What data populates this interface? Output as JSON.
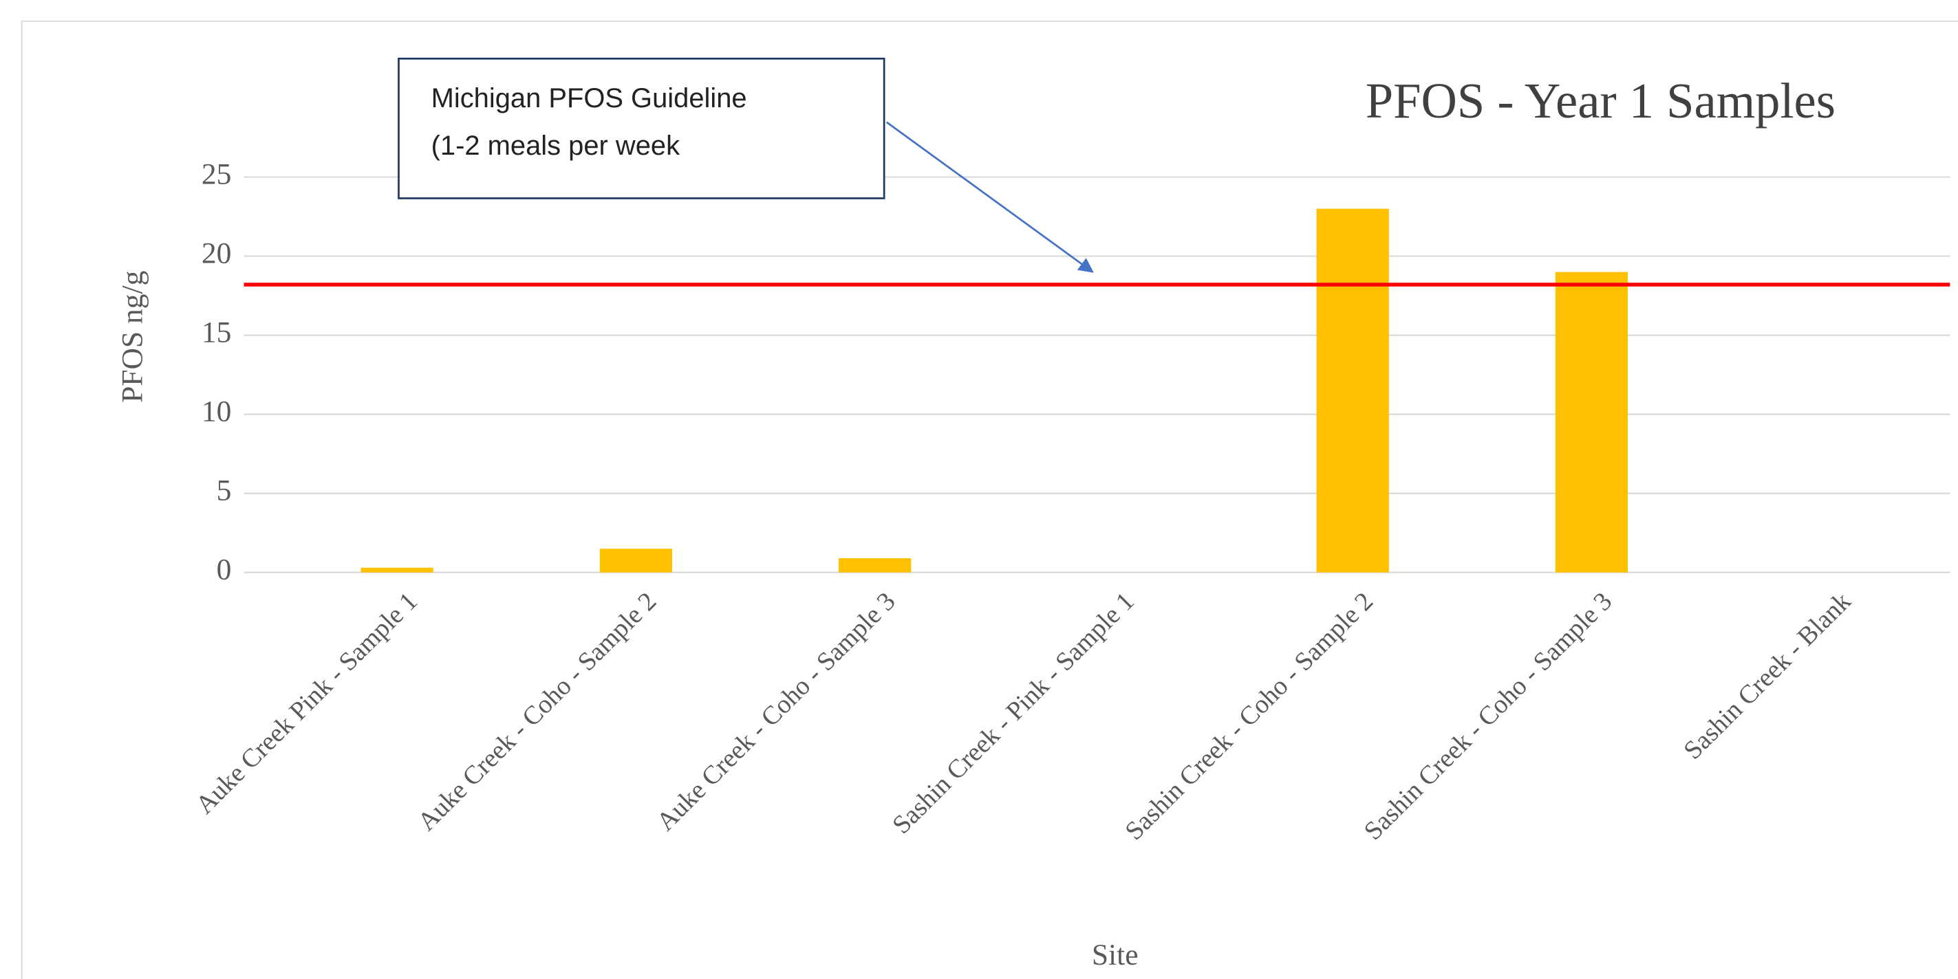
{
  "chart_data": {
    "type": "bar",
    "title": "PFOS - Year 1 Samples",
    "x_label": "Site",
    "y_label": "PFOS ng/g",
    "categories": [
      "Auke Creek Pink - Sample 1",
      "Auke Creek - Coho - Sample 2",
      "Auke Creek - Coho - Sample 3",
      "Sashin Creek - Pink - Sample 1",
      "Sashin Creek - Coho - Sample 2",
      "Sashin Creek - Coho - Sample 3",
      "Sashin Creek - Blank"
    ],
    "values": [
      0.3,
      1.5,
      0.9,
      0,
      23,
      19,
      0
    ],
    "color": "#ffc000",
    "ylim": [
      0,
      25
    ],
    "yticks": [
      0,
      5,
      10,
      15,
      20,
      25
    ],
    "grid": true,
    "reference_line": {
      "value": 18.2,
      "color": "#ff0000"
    },
    "annotation": [
      "Michigan PFOS Guideline",
      "(1-2 meals per week"
    ]
  }
}
